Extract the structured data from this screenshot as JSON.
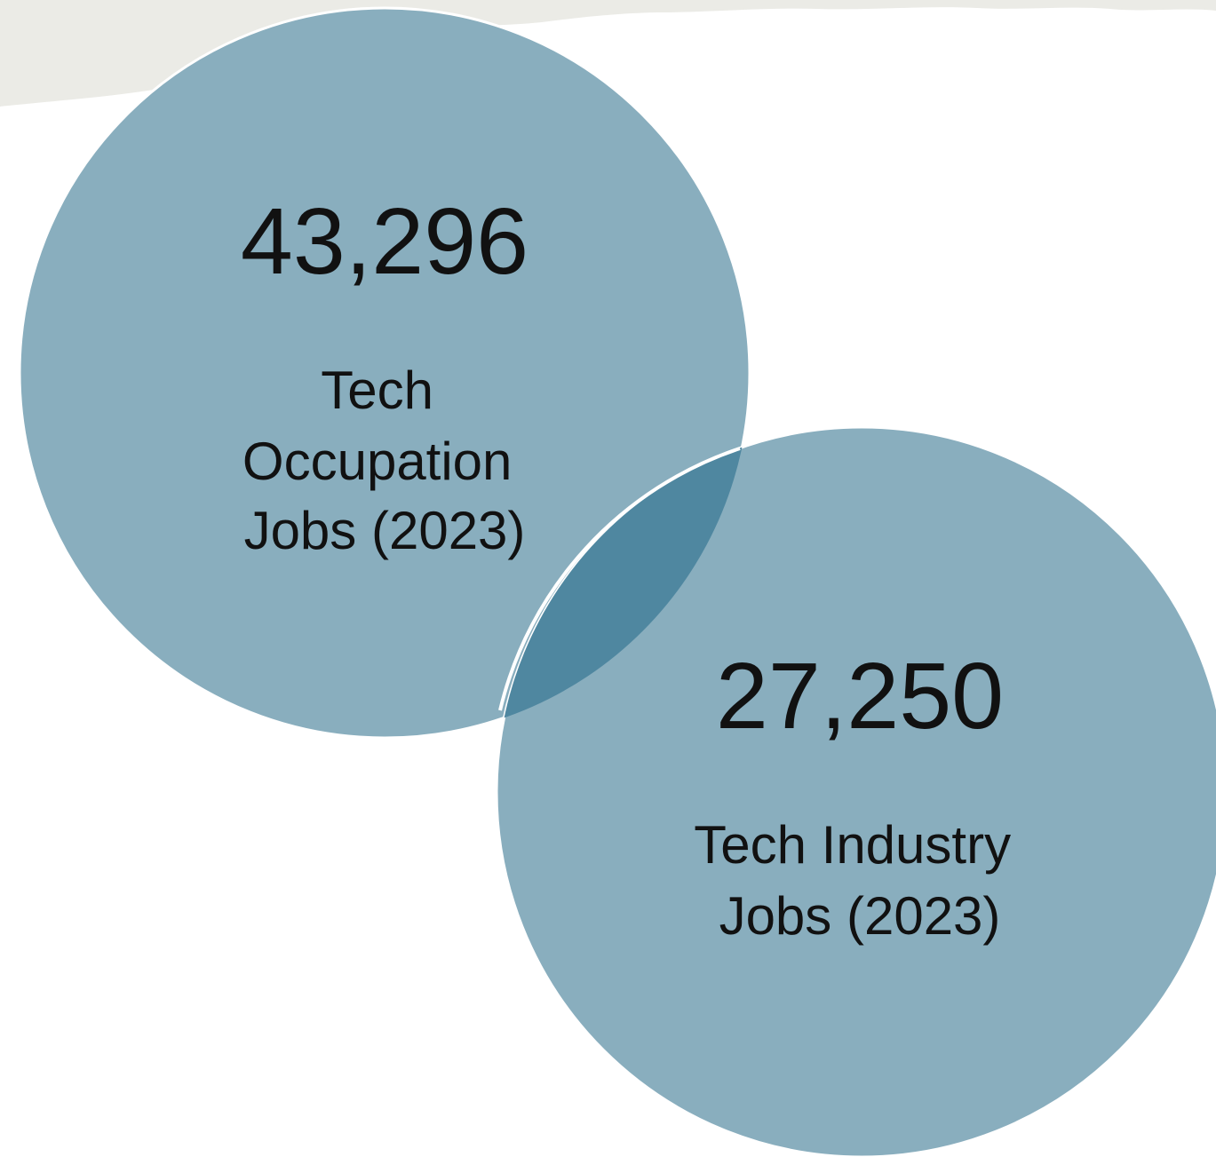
{
  "venn": {
    "colors": {
      "circle_fill": "#89aebe",
      "overlap_fill": "#4f87a0",
      "outline": "#ffffff",
      "banner": "#ebebe6",
      "text": "#111111"
    },
    "sets": [
      {
        "value": "43,296",
        "label_lines": [
          "Tech",
          "Occupation",
          "Jobs (2023)"
        ]
      },
      {
        "value": "27,250",
        "label_lines": [
          "Tech Industry",
          "Jobs (2023)"
        ]
      }
    ]
  }
}
